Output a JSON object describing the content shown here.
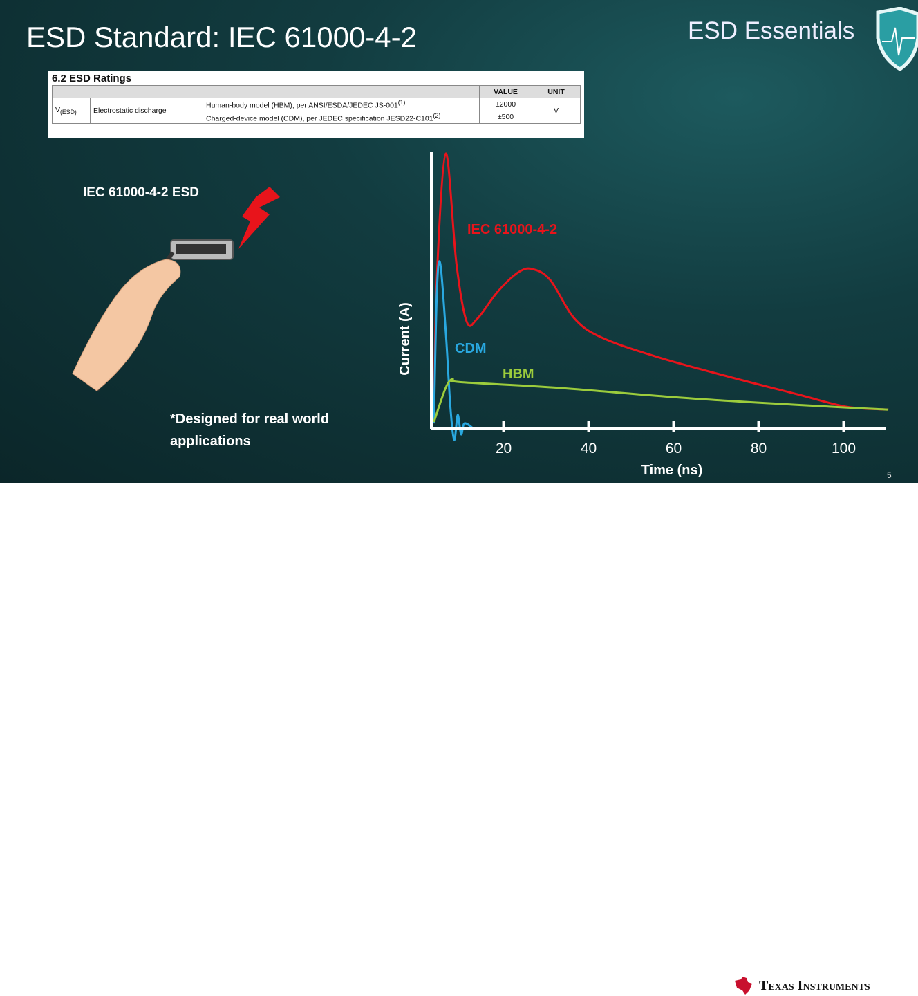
{
  "slide": {
    "title": "ESD Standard: IEC 61000-4-2",
    "brand": "ESD Essentials",
    "page_number": "5",
    "left_label": "IEC 61000-4-2 ESD",
    "note": "*Designed for real world applications",
    "footer_logo": "Texas Instruments"
  },
  "table": {
    "heading": "6.2   ESD Ratings",
    "headers": [
      "VALUE",
      "UNIT"
    ],
    "symbol": "V",
    "symbol_sub": "(ESD)",
    "parameter": "Electrostatic discharge",
    "rows": [
      {
        "condition": "Human-body model (HBM), per ANSI/ESDA/JEDEC JS-001",
        "note": "(1)",
        "value": "±2000"
      },
      {
        "condition": "Charged-device model (CDM), per JEDEC specification JESD22-C101",
        "note": "(2)",
        "value": "±500"
      }
    ],
    "unit": "V"
  },
  "chart_data": {
    "type": "line",
    "title": "",
    "xlabel": "Time (ns)",
    "ylabel": "Current (A)",
    "xlim": [
      3,
      110
    ],
    "ylim": [
      -0.05,
      1.0
    ],
    "xticks": [
      20,
      40,
      60,
      80,
      100
    ],
    "yticks": [],
    "grid": false,
    "legend": "inline labels",
    "series": [
      {
        "name": "IEC 61000-4-2",
        "color": "#e8141b",
        "x": [
          3.6,
          4.3,
          6.4,
          8.9,
          11.3,
          13.8,
          18.7,
          23.6,
          26.9,
          31,
          36.7,
          43.3,
          56.4,
          72.8,
          89.2,
          100.7,
          110.5
        ],
        "y": [
          0.02,
          0.55,
          1.0,
          0.6,
          0.39,
          0.4,
          0.5,
          0.57,
          0.58,
          0.54,
          0.4,
          0.33,
          0.26,
          0.19,
          0.125,
          0.08,
          0.07
        ]
      },
      {
        "name": "CDM",
        "color": "#29a8e0",
        "x": [
          3.6,
          4.3,
          5.1,
          6.4,
          7.5,
          8.4,
          9.2,
          10,
          10.8,
          13
        ],
        "y": [
          0.02,
          0.5,
          0.6,
          0.35,
          0.075,
          -0.04,
          0.05,
          -0.02,
          0.02,
          0
        ]
      },
      {
        "name": "HBM",
        "color": "#9ccc3c",
        "x": [
          3.6,
          6.4,
          8,
          9.7,
          31.8,
          64.6,
          97.4,
          110.5
        ],
        "y": [
          0.025,
          0.15,
          0.18,
          0.17,
          0.15,
          0.11,
          0.08,
          0.07
        ]
      }
    ]
  }
}
